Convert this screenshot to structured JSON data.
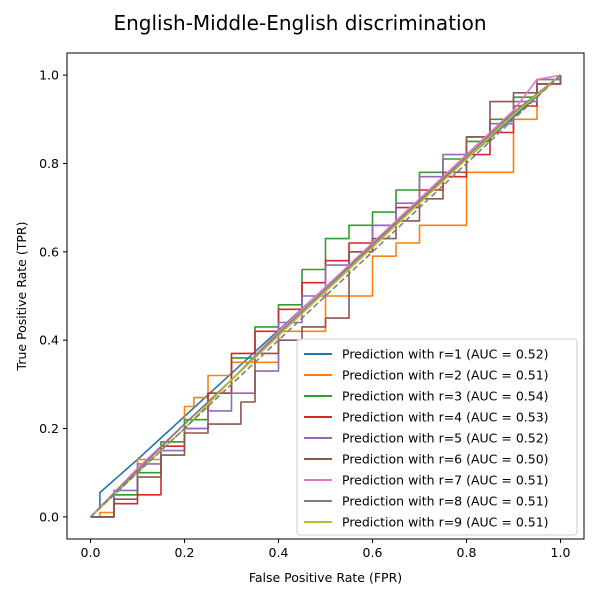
{
  "chart_data": {
    "type": "line",
    "title": "English-Middle-English discrimination",
    "xlabel": "False Positive Rate (FPR)",
    "ylabel": "True Positive Rate (TPR)",
    "xlim": [
      -0.05,
      1.05
    ],
    "ylim": [
      -0.05,
      1.05
    ],
    "xticks": [
      "0.0",
      "0.2",
      "0.4",
      "0.6",
      "0.8",
      "1.0"
    ],
    "yticks": [
      "0.0",
      "0.2",
      "0.4",
      "0.6",
      "0.8",
      "1.0"
    ],
    "grid": false,
    "legend_position": "bottom-right",
    "reference_line": {
      "style": "dashed",
      "color": "#7f7f7f",
      "x": [
        0,
        1
      ],
      "y": [
        0,
        1
      ]
    },
    "series": [
      {
        "name": "Prediction with r=1 (AUC = 0.52)",
        "color": "#1f77b4",
        "x": [
          0,
          0.02,
          0.02,
          0.1,
          0.3,
          0.5,
          0.7,
          0.9,
          1.0
        ],
        "y": [
          0,
          0.02,
          0.055,
          0.13,
          0.325,
          0.52,
          0.715,
          0.905,
          1.0
        ]
      },
      {
        "name": "Prediction with r=2 (AUC = 0.51)",
        "color": "#ff7f0e",
        "x": [
          0,
          0.02,
          0.05,
          0.1,
          0.15,
          0.2,
          0.22,
          0.25,
          0.3,
          0.4,
          0.5,
          0.6,
          0.65,
          0.7,
          0.8,
          0.9,
          0.95,
          1.0
        ],
        "y": [
          0,
          0.01,
          0.05,
          0.13,
          0.17,
          0.25,
          0.27,
          0.32,
          0.35,
          0.42,
          0.5,
          0.59,
          0.62,
          0.66,
          0.78,
          0.9,
          0.98,
          1.0
        ]
      },
      {
        "name": "Prediction with r=3 (AUC = 0.54)",
        "color": "#2ca02c",
        "x": [
          0,
          0.05,
          0.1,
          0.15,
          0.2,
          0.25,
          0.3,
          0.35,
          0.4,
          0.45,
          0.5,
          0.55,
          0.6,
          0.65,
          0.7,
          0.75,
          0.8,
          0.85,
          0.9,
          0.95,
          1.0
        ],
        "y": [
          0,
          0.05,
          0.1,
          0.17,
          0.22,
          0.28,
          0.36,
          0.43,
          0.48,
          0.56,
          0.63,
          0.66,
          0.69,
          0.74,
          0.78,
          0.81,
          0.85,
          0.9,
          0.95,
          0.99,
          1.0
        ]
      },
      {
        "name": "Prediction with r=4 (AUC = 0.53)",
        "color": "#d62728",
        "x": [
          0,
          0.05,
          0.1,
          0.15,
          0.2,
          0.25,
          0.3,
          0.35,
          0.4,
          0.45,
          0.5,
          0.55,
          0.6,
          0.65,
          0.7,
          0.75,
          0.8,
          0.85,
          0.9,
          0.95,
          1.0
        ],
        "y": [
          0,
          0.03,
          0.05,
          0.16,
          0.2,
          0.28,
          0.37,
          0.42,
          0.47,
          0.53,
          0.58,
          0.62,
          0.66,
          0.7,
          0.74,
          0.77,
          0.82,
          0.87,
          0.93,
          0.98,
          1.0
        ]
      },
      {
        "name": "Prediction with r=5 (AUC = 0.52)",
        "color": "#9467bd",
        "x": [
          0,
          0.05,
          0.1,
          0.15,
          0.2,
          0.25,
          0.3,
          0.35,
          0.4,
          0.45,
          0.5,
          0.55,
          0.6,
          0.65,
          0.7,
          0.75,
          0.8,
          0.85,
          0.9,
          0.95,
          1.0
        ],
        "y": [
          0,
          0.06,
          0.12,
          0.15,
          0.2,
          0.24,
          0.28,
          0.33,
          0.44,
          0.5,
          0.57,
          0.6,
          0.66,
          0.71,
          0.77,
          0.82,
          0.86,
          0.89,
          0.94,
          0.99,
          1.0
        ]
      },
      {
        "name": "Prediction with r=6 (AUC = 0.50)",
        "color": "#8c564b",
        "x": [
          0,
          0.05,
          0.1,
          0.15,
          0.2,
          0.25,
          0.32,
          0.35,
          0.4,
          0.45,
          0.5,
          0.55,
          0.55,
          0.6,
          0.65,
          0.7,
          0.75,
          0.8,
          0.85,
          0.9,
          0.95,
          1.0
        ],
        "y": [
          0,
          0.04,
          0.09,
          0.14,
          0.19,
          0.21,
          0.26,
          0.37,
          0.4,
          0.43,
          0.45,
          0.48,
          0.6,
          0.63,
          0.67,
          0.72,
          0.78,
          0.86,
          0.94,
          0.96,
          0.98,
          1.0
        ]
      },
      {
        "name": "Prediction with r=7 (AUC = 0.51)",
        "color": "#e377c2",
        "x": [
          0,
          0.1,
          0.2,
          0.3,
          0.4,
          0.5,
          0.6,
          0.7,
          0.8,
          0.9,
          0.95,
          1.0
        ],
        "y": [
          0,
          0.11,
          0.21,
          0.31,
          0.42,
          0.52,
          0.62,
          0.72,
          0.82,
          0.92,
          0.99,
          1.0
        ]
      },
      {
        "name": "Prediction with r=8 (AUC = 0.51)",
        "color": "#7f7f7f",
        "x": [
          0,
          0.1,
          0.2,
          0.3,
          0.4,
          0.5,
          0.6,
          0.7,
          0.8,
          0.9,
          1.0
        ],
        "y": [
          0,
          0.105,
          0.21,
          0.31,
          0.415,
          0.515,
          0.615,
          0.715,
          0.815,
          0.915,
          1.0
        ]
      },
      {
        "name": "Prediction with r=9 (AUC = 0.51)",
        "color": "#bcbd22",
        "x": [
          0,
          0.1,
          0.2,
          0.3,
          0.4,
          0.5,
          0.6,
          0.7,
          0.8,
          0.9,
          1.0
        ],
        "y": [
          0,
          0.1,
          0.2,
          0.31,
          0.41,
          0.51,
          0.61,
          0.71,
          0.81,
          0.91,
          1.0
        ]
      }
    ]
  }
}
